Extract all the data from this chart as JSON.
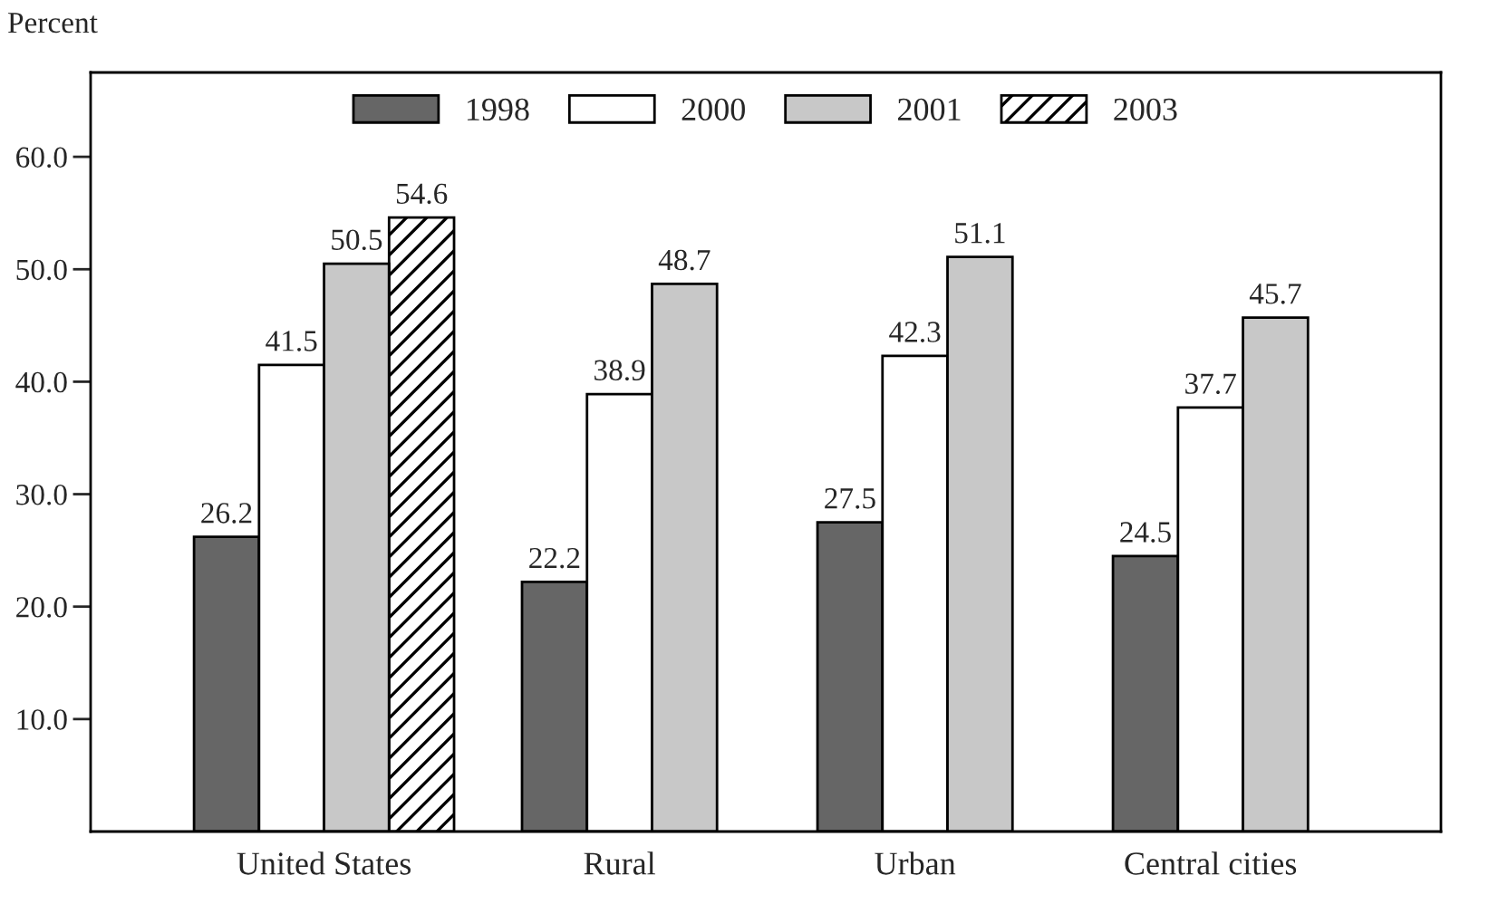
{
  "chart_data": {
    "type": "bar",
    "ylabel": "Percent",
    "categories": [
      "United States",
      "Rural",
      "Urban",
      "Central cities"
    ],
    "series": [
      {
        "name": "1998",
        "color": "#666666",
        "values": [
          26.2,
          22.2,
          27.5,
          24.5
        ]
      },
      {
        "name": "2000",
        "color": "#ffffff",
        "values": [
          41.5,
          38.9,
          42.3,
          37.7
        ]
      },
      {
        "name": "2001",
        "color": "#c8c8c8",
        "values": [
          50.5,
          48.7,
          51.1,
          45.7
        ]
      },
      {
        "name": "2003",
        "color": "#000000",
        "values": [
          54.6,
          null,
          null,
          null
        ]
      }
    ],
    "ylim": [
      0,
      67.5
    ],
    "yticks": [
      {
        "value": 10,
        "label": "10.0"
      },
      {
        "value": 20,
        "label": "20.0"
      },
      {
        "value": 30,
        "label": "30.0"
      },
      {
        "value": 40,
        "label": "40.0"
      },
      {
        "value": 50,
        "label": "50.0"
      },
      {
        "value": 60,
        "label": "60.0"
      }
    ],
    "data_labels": true,
    "legend": "top",
    "grid": false
  }
}
